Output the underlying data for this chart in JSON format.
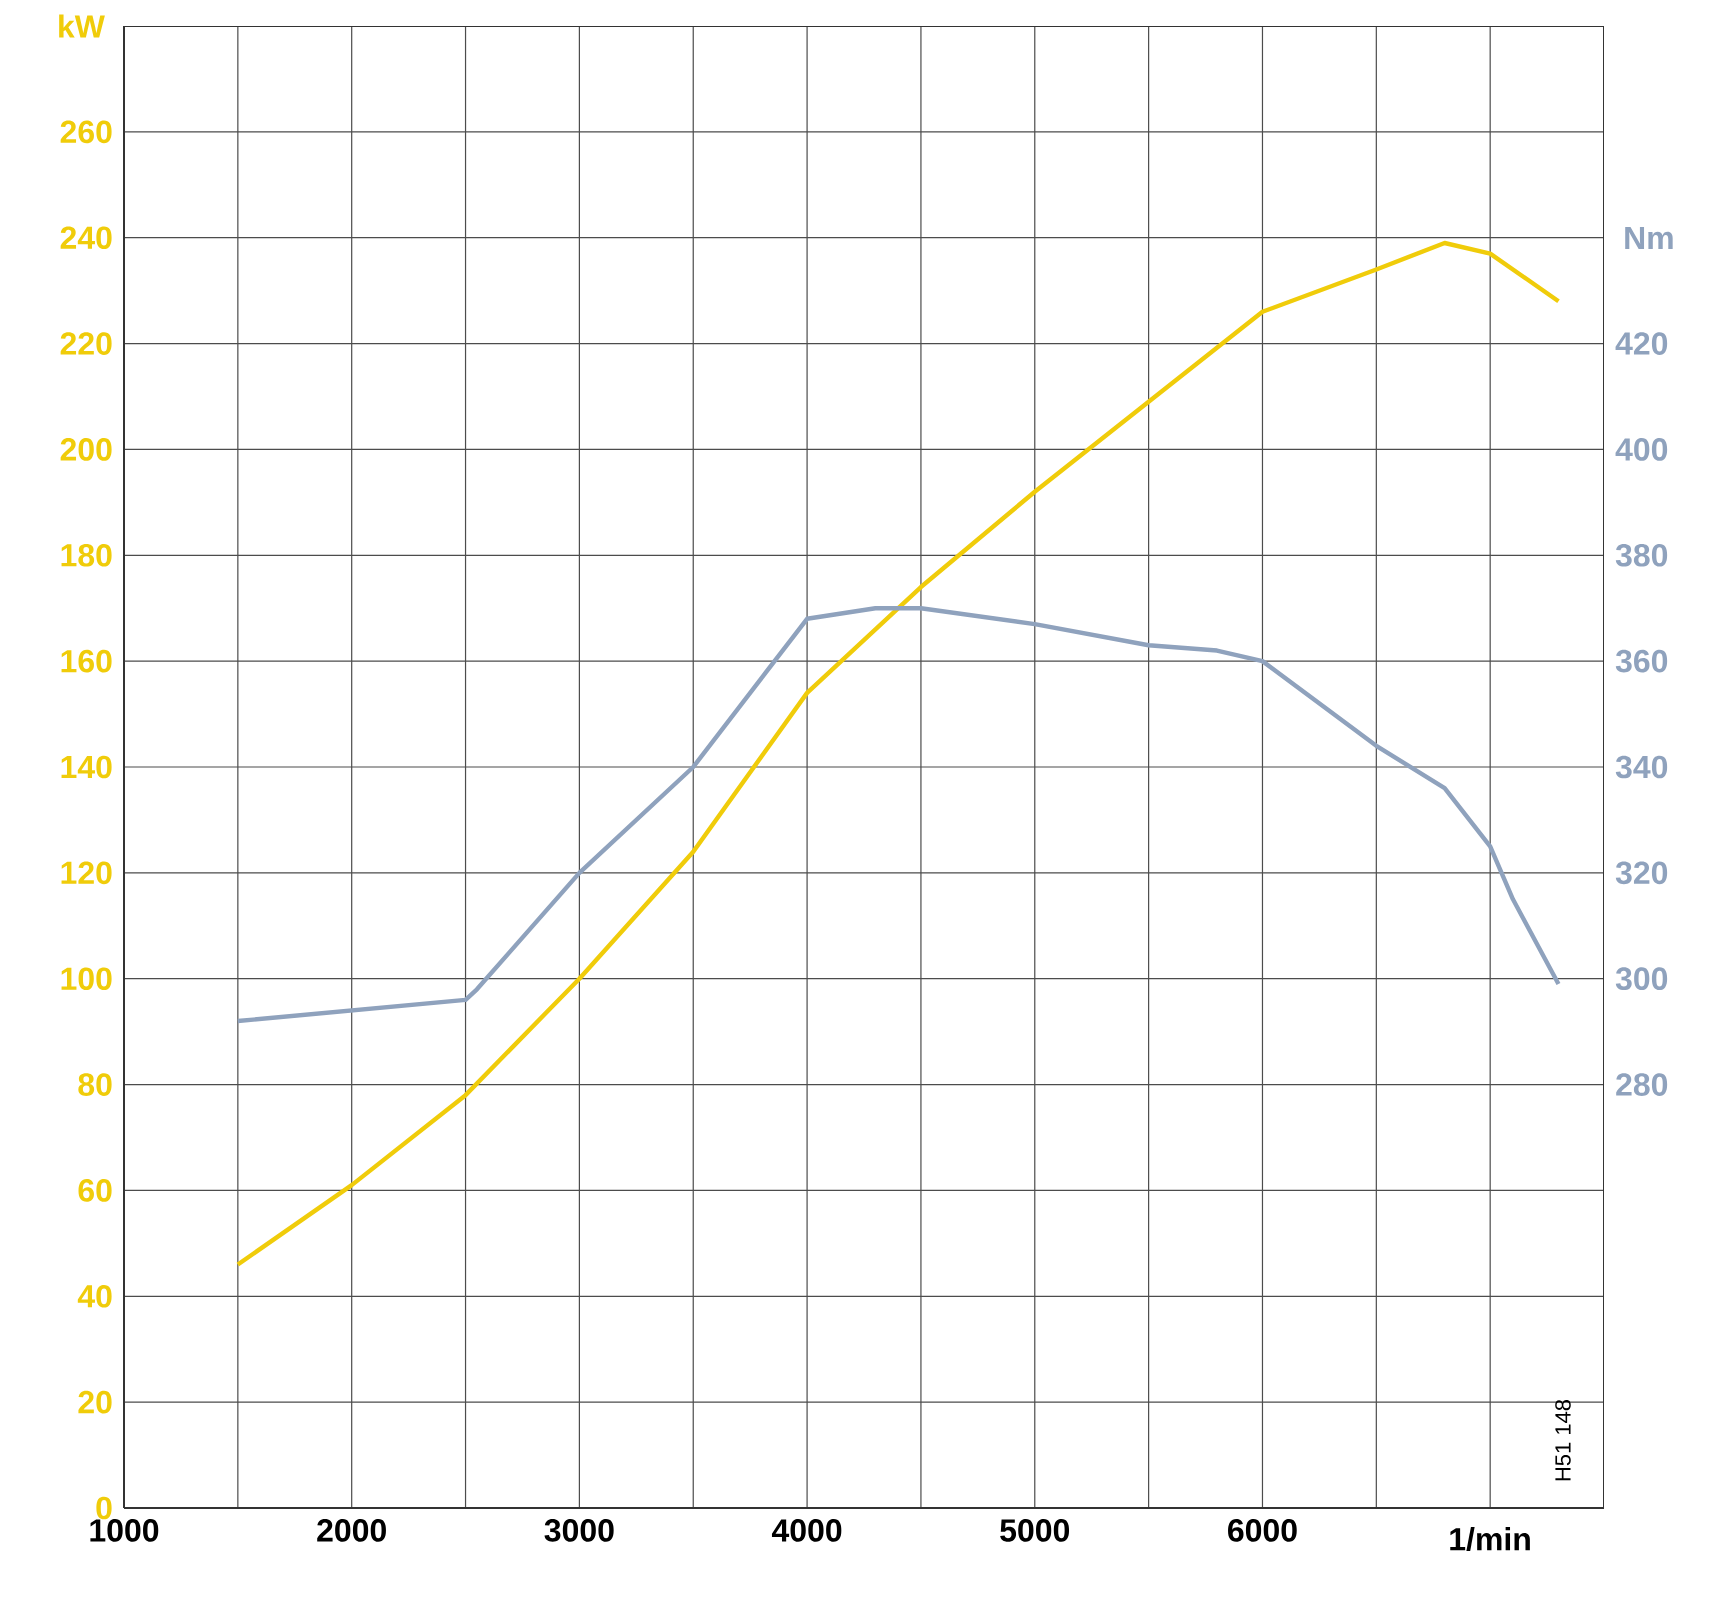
{
  "chart_data": {
    "type": "line",
    "xlim": [
      1000,
      7500
    ],
    "xticks": [
      1000,
      {
        "value": 1500,
        "label": null
      },
      2000,
      {
        "value": 2500,
        "label": null
      },
      3000,
      {
        "value": 3500,
        "label": null
      },
      4000,
      {
        "value": 4500,
        "label": null
      },
      5000,
      {
        "value": 5500,
        "label": null
      },
      6000,
      {
        "value": 6500,
        "label": null
      },
      {
        "value": 7000,
        "label": null
      }
    ],
    "xlabel": "1/min",
    "ylabel": "kW",
    "y2label": "Nm",
    "ylim": [
      0,
      280
    ],
    "yticks": [
      0,
      20,
      40,
      60,
      80,
      100,
      120,
      140,
      160,
      180,
      200,
      220,
      240,
      260
    ],
    "y2lim": [
      200,
      480
    ],
    "y2ticks": [
      280,
      300,
      320,
      340,
      360,
      380,
      400,
      420
    ],
    "grid": true,
    "series": [
      {
        "color": "#f0cc0a",
        "x": [
          1500,
          2000,
          2500,
          3000,
          3500,
          4000,
          4500,
          5000,
          5500,
          6000,
          6500,
          6800,
          7000,
          7300
        ],
        "values": [
          46,
          61,
          78,
          100,
          124,
          154,
          174,
          192,
          209,
          226,
          234,
          239,
          237,
          228
        ]
      },
      {
        "color": "#8fa2bd",
        "axis": "y2",
        "x": [
          1500,
          2000,
          2500,
          2550,
          3000,
          3500,
          4000,
          4300,
          4500,
          5000,
          5500,
          5800,
          6000,
          6500,
          6800,
          7000,
          7100,
          7300
        ],
        "values": [
          292,
          294,
          296,
          298,
          320,
          340,
          368,
          370,
          370,
          367,
          363,
          362,
          360,
          344,
          336,
          325,
          315,
          299
        ]
      }
    ],
    "annotations": [
      "H51 148"
    ]
  }
}
